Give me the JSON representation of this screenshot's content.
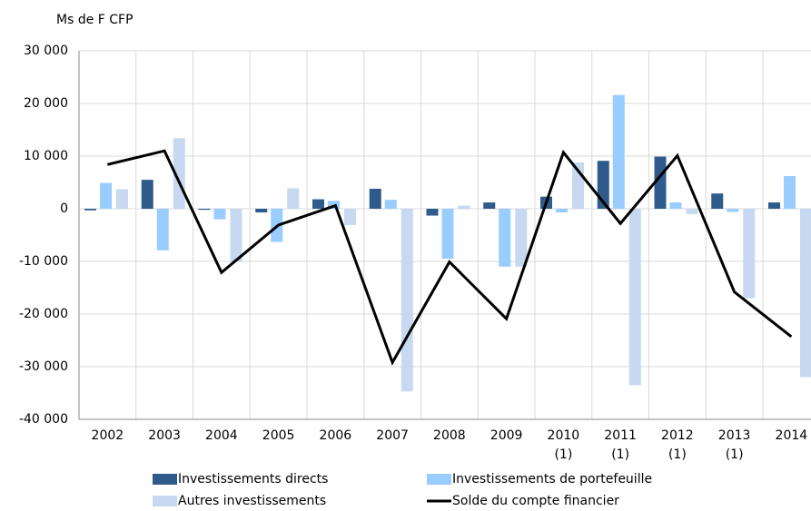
{
  "chart_data": {
    "type": "bar-line",
    "y_label": "Ms de F CFP",
    "categories": [
      [
        "2002"
      ],
      [
        "2003"
      ],
      [
        "2004"
      ],
      [
        "2005"
      ],
      [
        "2006"
      ],
      [
        "2007"
      ],
      [
        "2008"
      ],
      [
        "2009"
      ],
      [
        "2010",
        "(1)"
      ],
      [
        "2011",
        "(1)"
      ],
      [
        "2012",
        "(1)"
      ],
      [
        "2013",
        "(1)"
      ],
      [
        "2014"
      ]
    ],
    "series": [
      {
        "name": "Investissements directs",
        "type": "bar",
        "color": "#2e5b8c",
        "values": [
          -300,
          5500,
          -200,
          -700,
          1800,
          3800,
          -1300,
          1200,
          2300,
          9100,
          9900,
          2900,
          1200
        ]
      },
      {
        "name": "Investissements de portefeuille",
        "type": "bar",
        "color": "#99ccff",
        "values": [
          4900,
          -7900,
          -2000,
          -6300,
          1500,
          1700,
          -9500,
          -11000,
          -700,
          21600,
          1200,
          -600,
          6200
        ]
      },
      {
        "name": "Autres investissements",
        "type": "bar",
        "color": "#c6d9f0",
        "values": [
          3700,
          13400,
          -10000,
          3900,
          -3100,
          -34700,
          600,
          -11000,
          8800,
          -33500,
          -1000,
          -17000,
          -32000
        ]
      },
      {
        "name": "Solde du compte financier",
        "type": "line",
        "color": "#000000",
        "values": [
          8400,
          11000,
          -12100,
          -3100,
          600,
          -29200,
          -10100,
          -20900,
          10700,
          -2800,
          10100,
          -15800,
          -24300
        ]
      }
    ],
    "ylim": [
      -40000,
      30000
    ],
    "yticks": [
      {
        "value": -40000,
        "label": "-40 000"
      },
      {
        "value": -30000,
        "label": "-30 000"
      },
      {
        "value": -20000,
        "label": "-20 000"
      },
      {
        "value": -10000,
        "label": "-10 000"
      },
      0,
      {
        "value": 10000,
        "label": "10 000"
      },
      {
        "value": 20000,
        "label": "20 000"
      },
      {
        "value": 30000,
        "label": "30 000"
      }
    ],
    "grid": true
  }
}
